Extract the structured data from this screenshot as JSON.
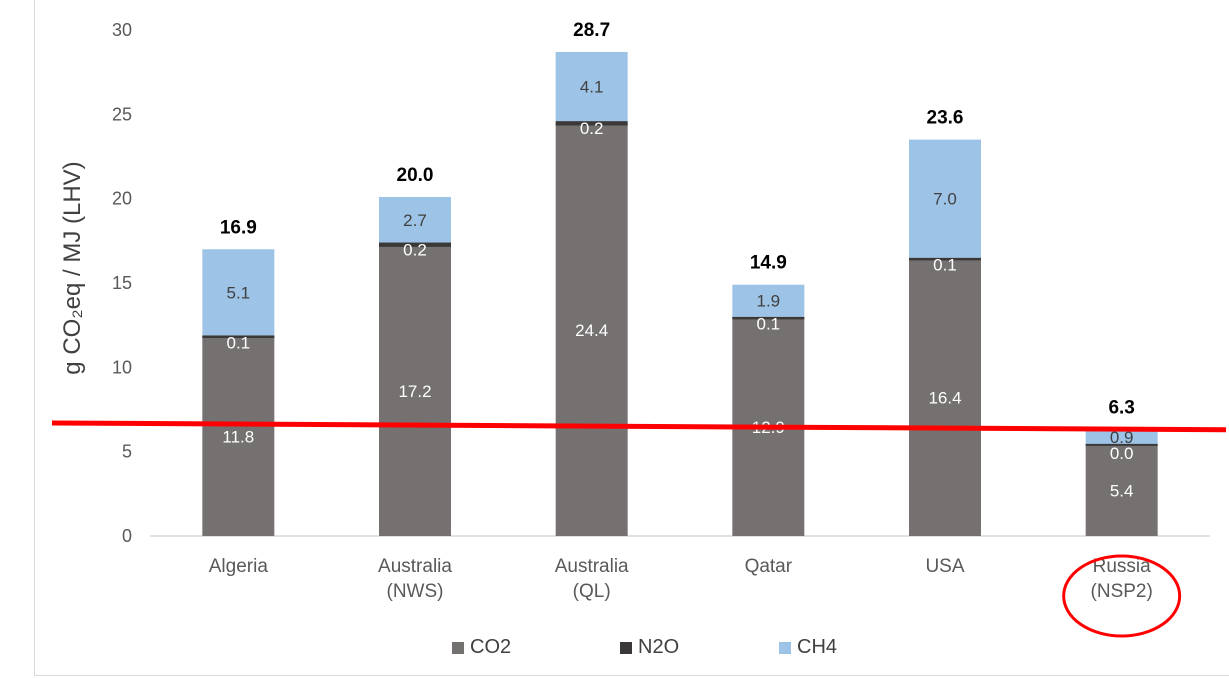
{
  "chart_data": {
    "type": "bar",
    "stacked": true,
    "ylabel": "g CO₂eq / MJ (LHV)",
    "ylim": [
      0,
      30
    ],
    "yticks": [
      0,
      5,
      10,
      15,
      20,
      25,
      30
    ],
    "grid": false,
    "legend_position": "bottom",
    "categories": [
      [
        "Algeria"
      ],
      [
        "Australia",
        "(NWS)"
      ],
      [
        "Australia",
        "(QL)"
      ],
      [
        "Qatar"
      ],
      [
        "USA"
      ],
      [
        "Russia",
        "(NSP2)"
      ]
    ],
    "series": [
      {
        "name": "CO2",
        "color": "#767171",
        "values": [
          11.8,
          17.2,
          24.4,
          12.9,
          16.4,
          5.4
        ],
        "labels": [
          "11.8",
          "17.2",
          "24.4",
          "12.9",
          "16.4",
          "5.4"
        ]
      },
      {
        "name": "N2O",
        "color": "#3a3838",
        "values": [
          0.1,
          0.2,
          0.2,
          0.1,
          0.1,
          0.0
        ],
        "labels": [
          "0.1",
          "0.2",
          "0.2",
          "0.1",
          "0.1",
          "0.0"
        ]
      },
      {
        "name": "CH4",
        "color": "#9dc3e6",
        "values": [
          5.1,
          2.7,
          4.1,
          1.9,
          7.0,
          0.9
        ],
        "labels": [
          "5.1",
          "2.7",
          "4.1",
          "1.9",
          "7.0",
          "0.9"
        ]
      }
    ],
    "totals": [
      16.9,
      20.0,
      28.7,
      14.9,
      23.6,
      6.3
    ],
    "total_labels": [
      "16.9",
      "20.0",
      "28.7",
      "14.9",
      "23.6",
      "6.3"
    ],
    "annotations": {
      "reference_line": {
        "y_start": 6.7,
        "y_end": 6.3,
        "color": "#ff0000"
      },
      "highlight_circle": {
        "category_index": 5,
        "color": "#ff0000"
      }
    }
  }
}
